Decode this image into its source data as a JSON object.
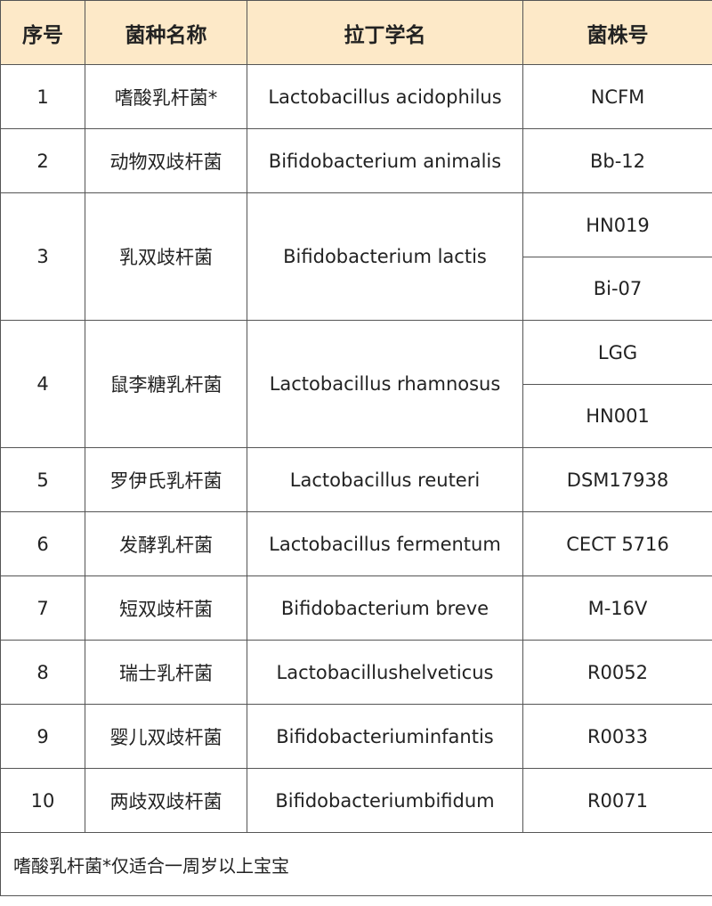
{
  "headers": [
    "序号",
    "菌种名称",
    "拉丁学名",
    "菌株号"
  ],
  "rows": [
    {
      "no": "1",
      "name": "嗜酸乳杆菌*",
      "latin": "Lactobacillus acidophilus",
      "strains": [
        "NCFM"
      ]
    },
    {
      "no": "2",
      "name": "动物双歧杆菌",
      "latin": "Bifidobacterium animalis",
      "strains": [
        "Bb-12"
      ]
    },
    {
      "no": "3",
      "name": "乳双歧杆菌",
      "latin": "Bifidobacterium lactis",
      "strains": [
        "HN019",
        "Bi-07"
      ]
    },
    {
      "no": "4",
      "name": "鼠李糖乳杆菌",
      "latin": "Lactobacillus rhamnosus",
      "strains": [
        "LGG",
        "HN001"
      ]
    },
    {
      "no": "5",
      "name": "罗伊氏乳杆菌",
      "latin": "Lactobacillus reuteri",
      "strains": [
        "DSM17938"
      ]
    },
    {
      "no": "6",
      "name": "发酵乳杆菌",
      "latin": "Lactobacillus fermentum",
      "strains": [
        "CECT 5716"
      ]
    },
    {
      "no": "7",
      "name": "短双歧杆菌",
      "latin": "Bifidobacterium breve",
      "strains": [
        "M-16V"
      ]
    },
    {
      "no": "8",
      "name": "瑞士乳杆菌",
      "latin": "Lactobacillushelveticus",
      "strains": [
        "R0052"
      ]
    },
    {
      "no": "9",
      "name": "婴儿双歧杆菌",
      "latin": "Bifidobacteriuminfantis",
      "strains": [
        "R0033"
      ]
    },
    {
      "no": "10",
      "name": "两歧双歧杆菌",
      "latin": "Bifidobacteriumbifidum",
      "strains": [
        "R0071"
      ]
    }
  ],
  "footnote": "嗜酸乳杆菌*仅适合一周岁以上宝宝",
  "colors": {
    "header_bg": "#fde9c8",
    "border": "#555555"
  }
}
